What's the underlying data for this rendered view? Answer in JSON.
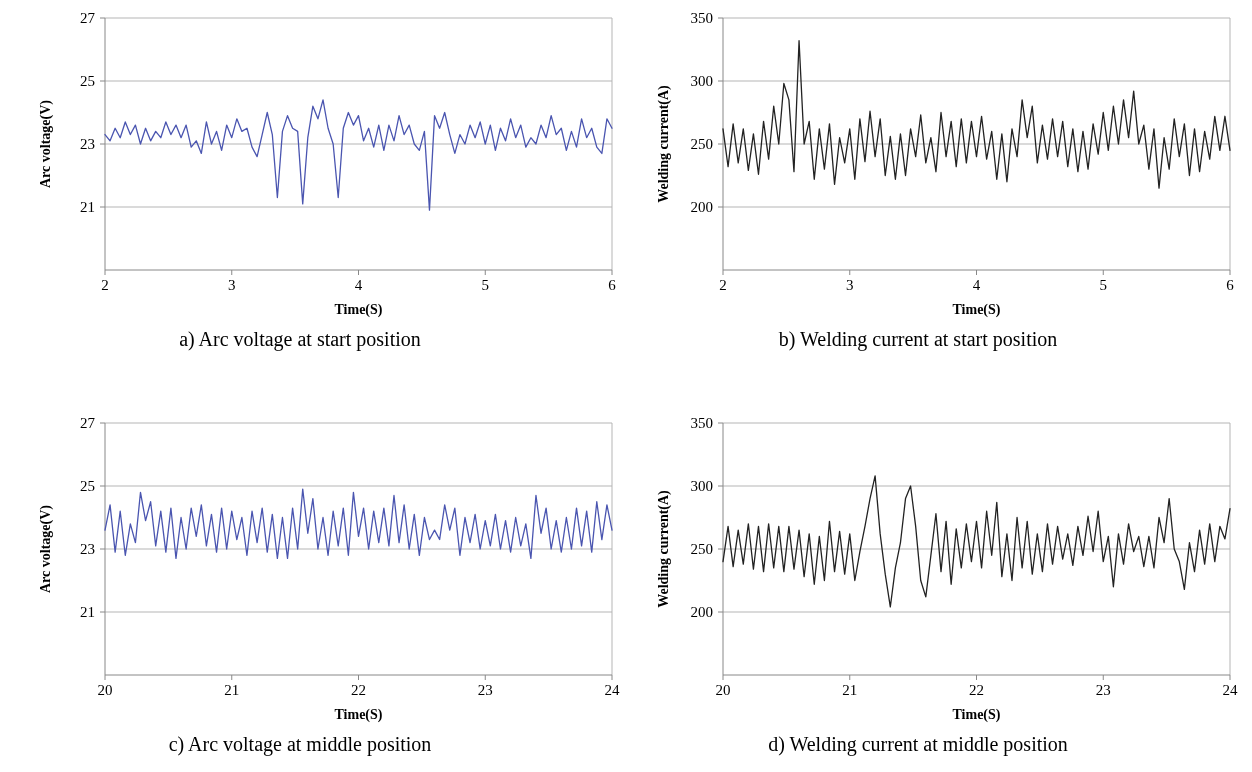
{
  "chart_data": [
    {
      "type": "line",
      "xlabel": "Time(S)",
      "ylabel": "Arc voltage(V)",
      "annotations": [
        "a) Arc voltage at start position"
      ],
      "xlim": [
        2,
        6
      ],
      "xticks": [
        2,
        3,
        4,
        5,
        6
      ],
      "ylim": [
        19,
        27
      ],
      "yticks": [
        21,
        23,
        25,
        27
      ],
      "grid": "y",
      "x": [
        2.0,
        2.04,
        2.08,
        2.12,
        2.16,
        2.2,
        2.24,
        2.28,
        2.32,
        2.36,
        2.4,
        2.44,
        2.48,
        2.52,
        2.56,
        2.6,
        2.64,
        2.68,
        2.72,
        2.76,
        2.8,
        2.84,
        2.88,
        2.92,
        2.96,
        3.0,
        3.04,
        3.08,
        3.12,
        3.16,
        3.2,
        3.24,
        3.28,
        3.32,
        3.36,
        3.4,
        3.44,
        3.48,
        3.52,
        3.56,
        3.6,
        3.64,
        3.68,
        3.72,
        3.76,
        3.8,
        3.84,
        3.88,
        3.92,
        3.96,
        4.0,
        4.04,
        4.08,
        4.12,
        4.16,
        4.2,
        4.24,
        4.28,
        4.32,
        4.36,
        4.4,
        4.44,
        4.48,
        4.52,
        4.56,
        4.6,
        4.64,
        4.68,
        4.72,
        4.76,
        4.8,
        4.84,
        4.88,
        4.92,
        4.96,
        5.0,
        5.04,
        5.08,
        5.12,
        5.16,
        5.2,
        5.24,
        5.28,
        5.32,
        5.36,
        5.4,
        5.44,
        5.48,
        5.52,
        5.56,
        5.6,
        5.64,
        5.68,
        5.72,
        5.76,
        5.8,
        5.84,
        5.88,
        5.92,
        5.96,
        6.0
      ],
      "series": [
        {
          "color": "#4a55b0",
          "values": [
            23.3,
            23.1,
            23.5,
            23.2,
            23.7,
            23.3,
            23.6,
            23.0,
            23.5,
            23.1,
            23.4,
            23.2,
            23.7,
            23.3,
            23.6,
            23.2,
            23.6,
            22.9,
            23.1,
            22.7,
            23.7,
            23.0,
            23.4,
            22.8,
            23.6,
            23.2,
            23.8,
            23.4,
            23.5,
            22.9,
            22.6,
            23.3,
            24.0,
            23.3,
            21.3,
            23.4,
            23.9,
            23.5,
            23.4,
            21.1,
            23.2,
            24.2,
            23.8,
            24.4,
            23.5,
            23.0,
            21.3,
            23.5,
            24.0,
            23.6,
            23.9,
            23.1,
            23.5,
            22.9,
            23.6,
            22.8,
            23.6,
            23.1,
            23.9,
            23.3,
            23.6,
            23.0,
            22.8,
            23.4,
            20.9,
            23.9,
            23.5,
            24.0,
            23.3,
            22.7,
            23.3,
            23.0,
            23.6,
            23.2,
            23.7,
            23.0,
            23.6,
            22.8,
            23.5,
            23.1,
            23.8,
            23.2,
            23.6,
            22.9,
            23.2,
            23.0,
            23.6,
            23.2,
            23.9,
            23.3,
            23.5,
            22.8,
            23.4,
            22.9,
            23.8,
            23.2,
            23.5,
            22.9,
            22.7,
            23.8,
            23.5
          ]
        }
      ]
    },
    {
      "type": "line",
      "xlabel": "Time(S)",
      "ylabel": "Welding current(A)",
      "annotations": [
        "b) Welding current at start position"
      ],
      "xlim": [
        2,
        6
      ],
      "xticks": [
        2,
        3,
        4,
        5,
        6
      ],
      "ylim": [
        150,
        350
      ],
      "yticks": [
        200,
        250,
        300,
        350
      ],
      "grid": "y",
      "x": [
        2.0,
        2.04,
        2.08,
        2.12,
        2.16,
        2.2,
        2.24,
        2.28,
        2.32,
        2.36,
        2.4,
        2.44,
        2.48,
        2.52,
        2.56,
        2.6,
        2.64,
        2.68,
        2.72,
        2.76,
        2.8,
        2.84,
        2.88,
        2.92,
        2.96,
        3.0,
        3.04,
        3.08,
        3.12,
        3.16,
        3.2,
        3.24,
        3.28,
        3.32,
        3.36,
        3.4,
        3.44,
        3.48,
        3.52,
        3.56,
        3.6,
        3.64,
        3.68,
        3.72,
        3.76,
        3.8,
        3.84,
        3.88,
        3.92,
        3.96,
        4.0,
        4.04,
        4.08,
        4.12,
        4.16,
        4.2,
        4.24,
        4.28,
        4.32,
        4.36,
        4.4,
        4.44,
        4.48,
        4.52,
        4.56,
        4.6,
        4.64,
        4.68,
        4.72,
        4.76,
        4.8,
        4.84,
        4.88,
        4.92,
        4.96,
        5.0,
        5.04,
        5.08,
        5.12,
        5.16,
        5.2,
        5.24,
        5.28,
        5.32,
        5.36,
        5.4,
        5.44,
        5.48,
        5.52,
        5.56,
        5.6,
        5.64,
        5.68,
        5.72,
        5.76,
        5.8,
        5.84,
        5.88,
        5.92,
        5.96,
        6.0
      ],
      "series": [
        {
          "color": "#222222",
          "values": [
            262,
            232,
            266,
            235,
            262,
            229,
            258,
            226,
            268,
            238,
            280,
            250,
            298,
            285,
            228,
            332,
            250,
            268,
            222,
            262,
            230,
            266,
            218,
            255,
            235,
            262,
            222,
            270,
            236,
            276,
            240,
            270,
            225,
            256,
            222,
            258,
            225,
            262,
            240,
            273,
            235,
            255,
            228,
            275,
            240,
            268,
            232,
            270,
            235,
            268,
            240,
            272,
            238,
            260,
            222,
            258,
            220,
            262,
            240,
            285,
            255,
            280,
            235,
            265,
            238,
            270,
            240,
            268,
            232,
            262,
            228,
            260,
            230,
            266,
            242,
            275,
            245,
            280,
            250,
            285,
            255,
            292,
            250,
            265,
            230,
            262,
            215,
            255,
            230,
            270,
            240,
            266,
            225,
            262,
            228,
            260,
            238,
            272,
            245,
            272,
            245
          ]
        }
      ]
    },
    {
      "type": "line",
      "xlabel": "Time(S)",
      "ylabel": "Arc voltage(V)",
      "annotations": [
        "c) Arc voltage at middle position"
      ],
      "xlim": [
        20,
        24
      ],
      "xticks": [
        20,
        21,
        22,
        23,
        24
      ],
      "ylim": [
        19,
        27
      ],
      "yticks": [
        21,
        23,
        25,
        27
      ],
      "grid": "y",
      "x": [
        20.0,
        20.04,
        20.08,
        20.12,
        20.16,
        20.2,
        20.24,
        20.28,
        20.32,
        20.36,
        20.4,
        20.44,
        20.48,
        20.52,
        20.56,
        20.6,
        20.64,
        20.68,
        20.72,
        20.76,
        20.8,
        20.84,
        20.88,
        20.92,
        20.96,
        21.0,
        21.04,
        21.08,
        21.12,
        21.16,
        21.2,
        21.24,
        21.28,
        21.32,
        21.36,
        21.4,
        21.44,
        21.48,
        21.52,
        21.56,
        21.6,
        21.64,
        21.68,
        21.72,
        21.76,
        21.8,
        21.84,
        21.88,
        21.92,
        21.96,
        22.0,
        22.04,
        22.08,
        22.12,
        22.16,
        22.2,
        22.24,
        22.28,
        22.32,
        22.36,
        22.4,
        22.44,
        22.48,
        22.52,
        22.56,
        22.6,
        22.64,
        22.68,
        22.72,
        22.76,
        22.8,
        22.84,
        22.88,
        22.92,
        22.96,
        23.0,
        23.04,
        23.08,
        23.12,
        23.16,
        23.2,
        23.24,
        23.28,
        23.32,
        23.36,
        23.4,
        23.44,
        23.48,
        23.52,
        23.56,
        23.6,
        23.64,
        23.68,
        23.72,
        23.76,
        23.8,
        23.84,
        23.88,
        23.92,
        23.96,
        24.0
      ],
      "series": [
        {
          "color": "#4a55b0",
          "values": [
            23.6,
            24.4,
            22.9,
            24.2,
            22.8,
            23.8,
            23.2,
            24.8,
            23.9,
            24.5,
            23.1,
            24.2,
            22.9,
            24.3,
            22.7,
            24.0,
            23.0,
            24.3,
            23.4,
            24.4,
            23.1,
            24.1,
            22.9,
            24.3,
            23.0,
            24.2,
            23.3,
            24.0,
            22.8,
            24.2,
            23.2,
            24.3,
            22.9,
            24.1,
            22.7,
            24.0,
            22.7,
            24.3,
            23.0,
            24.9,
            23.5,
            24.6,
            23.0,
            24.0,
            22.8,
            24.2,
            23.1,
            24.3,
            22.8,
            24.8,
            23.4,
            24.3,
            23.0,
            24.2,
            23.2,
            24.3,
            23.1,
            24.7,
            23.2,
            24.4,
            23.0,
            24.1,
            22.8,
            24.0,
            23.3,
            23.6,
            23.3,
            24.4,
            23.6,
            24.3,
            22.8,
            24.0,
            23.2,
            24.1,
            23.0,
            23.9,
            23.1,
            24.1,
            23.0,
            23.9,
            22.9,
            24.0,
            23.1,
            23.8,
            22.7,
            24.7,
            23.5,
            24.3,
            23.0,
            23.9,
            22.9,
            24.0,
            23.0,
            24.3,
            23.1,
            24.2,
            22.9,
            24.5,
            23.3,
            24.4,
            23.6
          ]
        }
      ]
    },
    {
      "type": "line",
      "xlabel": "Time(S)",
      "ylabel": "Welding current(A)",
      "annotations": [
        "d) Welding current at middle position"
      ],
      "xlim": [
        20,
        24
      ],
      "xticks": [
        20,
        21,
        22,
        23,
        24
      ],
      "ylim": [
        150,
        350
      ],
      "yticks": [
        200,
        250,
        300,
        350
      ],
      "grid": "y",
      "x": [
        20.0,
        20.04,
        20.08,
        20.12,
        20.16,
        20.2,
        20.24,
        20.28,
        20.32,
        20.36,
        20.4,
        20.44,
        20.48,
        20.52,
        20.56,
        20.6,
        20.64,
        20.68,
        20.72,
        20.76,
        20.8,
        20.84,
        20.88,
        20.92,
        20.96,
        21.0,
        21.04,
        21.08,
        21.12,
        21.16,
        21.2,
        21.24,
        21.28,
        21.32,
        21.36,
        21.4,
        21.44,
        21.48,
        21.52,
        21.56,
        21.6,
        21.64,
        21.68,
        21.72,
        21.76,
        21.8,
        21.84,
        21.88,
        21.92,
        21.96,
        22.0,
        22.04,
        22.08,
        22.12,
        22.16,
        22.2,
        22.24,
        22.28,
        22.32,
        22.36,
        22.4,
        22.44,
        22.48,
        22.52,
        22.56,
        22.6,
        22.64,
        22.68,
        22.72,
        22.76,
        22.8,
        22.84,
        22.88,
        22.92,
        22.96,
        23.0,
        23.04,
        23.08,
        23.12,
        23.16,
        23.2,
        23.24,
        23.28,
        23.32,
        23.36,
        23.4,
        23.44,
        23.48,
        23.52,
        23.56,
        23.6,
        23.64,
        23.68,
        23.72,
        23.76,
        23.8,
        23.84,
        23.88,
        23.92,
        23.96,
        24.0
      ],
      "series": [
        {
          "color": "#222222",
          "values": [
            240,
            268,
            236,
            265,
            238,
            270,
            234,
            268,
            232,
            270,
            235,
            268,
            232,
            268,
            234,
            265,
            228,
            262,
            222,
            260,
            225,
            272,
            232,
            264,
            230,
            262,
            225,
            248,
            268,
            290,
            308,
            262,
            230,
            204,
            235,
            255,
            290,
            300,
            268,
            225,
            212,
            245,
            278,
            232,
            272,
            222,
            266,
            235,
            270,
            240,
            272,
            235,
            280,
            245,
            287,
            228,
            262,
            225,
            275,
            235,
            272,
            230,
            262,
            232,
            270,
            238,
            268,
            242,
            262,
            237,
            268,
            245,
            276,
            248,
            280,
            240,
            260,
            220,
            262,
            238,
            270,
            248,
            260,
            236,
            260,
            235,
            275,
            255,
            290,
            250,
            240,
            218,
            255,
            232,
            265,
            238,
            270,
            240,
            268,
            258,
            282
          ]
        }
      ]
    }
  ]
}
